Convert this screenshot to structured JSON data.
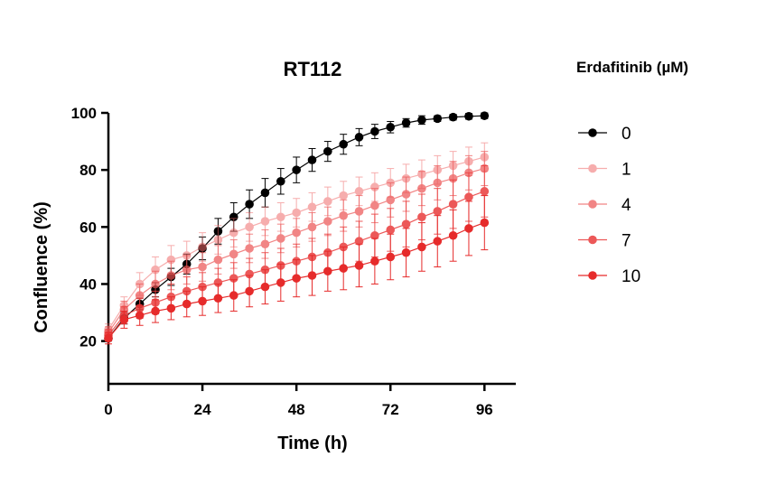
{
  "chart_data": {
    "type": "line",
    "title": "RT112",
    "xlabel": "Time (h)",
    "ylabel": "Confluence (%)",
    "xlim": [
      0,
      104
    ],
    "ylim": [
      5,
      100
    ],
    "xticks": [
      0,
      24,
      48,
      72,
      96
    ],
    "yticks": [
      20,
      40,
      60,
      80,
      100
    ],
    "grid": false,
    "legend": {
      "title": "Erdafitinib (µM)",
      "placement": "right"
    },
    "x": [
      0,
      4,
      8,
      12,
      16,
      20,
      24,
      28,
      32,
      36,
      40,
      44,
      48,
      52,
      56,
      60,
      64,
      68,
      72,
      76,
      80,
      84,
      88,
      92,
      96
    ],
    "series": [
      {
        "name": "0",
        "color": "#000000",
        "opacity": 1.0,
        "values": [
          21,
          28,
          33,
          38,
          42.5,
          47,
          52.5,
          58.5,
          63.5,
          68,
          72,
          76,
          80,
          83.5,
          86.5,
          89,
          91.5,
          93.5,
          95,
          96.5,
          97.5,
          98,
          98.5,
          98.8,
          99
        ],
        "errors": [
          1,
          2,
          2,
          2.5,
          3,
          3.5,
          4,
          4.5,
          5,
          5,
          5,
          4.5,
          4.5,
          4,
          3.5,
          3.5,
          3,
          2.5,
          2,
          1.5,
          1.5,
          1,
          1,
          1,
          1
        ]
      },
      {
        "name": "1",
        "color": "#f06b6b",
        "opacity": 0.55,
        "values": [
          24,
          32.5,
          40,
          45,
          48.5,
          50,
          53,
          55.5,
          58,
          60,
          62,
          63.5,
          65,
          67,
          69,
          71,
          72.5,
          74,
          75.5,
          77,
          78.5,
          80,
          81.5,
          83,
          84.5
        ],
        "errors": [
          2,
          3,
          4,
          4.5,
          5,
          5,
          5,
          5,
          5,
          5,
          5,
          5,
          5,
          5,
          5,
          5,
          5,
          5,
          5,
          5,
          5,
          5,
          5,
          5,
          5
        ]
      },
      {
        "name": "4",
        "color": "#ec5252",
        "opacity": 0.7,
        "values": [
          23,
          31,
          36,
          40,
          43,
          45,
          46,
          48.5,
          50.5,
          52.5,
          54,
          56,
          58,
          60,
          62,
          64,
          65.5,
          67.5,
          69.5,
          71.5,
          73.5,
          75.5,
          77,
          79,
          80.5
        ],
        "errors": [
          2,
          3,
          4,
          4.5,
          5,
          5,
          5,
          5,
          5,
          5,
          5,
          5,
          5,
          5,
          5,
          5.5,
          5.5,
          6,
          6,
          6,
          6,
          6,
          6,
          6,
          6
        ]
      },
      {
        "name": "7",
        "color": "#e93c3c",
        "opacity": 0.85,
        "values": [
          22,
          29,
          31.5,
          33.5,
          35.5,
          37.5,
          39,
          40.5,
          42,
          43.5,
          45,
          46.5,
          48,
          49.5,
          51,
          53,
          55,
          57,
          59,
          61,
          63.5,
          65.5,
          68,
          70.5,
          72.5
        ],
        "errors": [
          2,
          3,
          3.5,
          4,
          4.5,
          5,
          5,
          5,
          5.5,
          5.5,
          6,
          6,
          6,
          6.5,
          6.5,
          7,
          7,
          7.5,
          7.5,
          8,
          8,
          8,
          8.5,
          8.5,
          9
        ]
      },
      {
        "name": "10",
        "color": "#e62b2b",
        "opacity": 1.0,
        "values": [
          21,
          27.5,
          29,
          30.5,
          31.5,
          33,
          34,
          35,
          36,
          37.5,
          39,
          40.5,
          42,
          43,
          44.5,
          45.5,
          46.5,
          48,
          49.5,
          51,
          53,
          55,
          57,
          59.5,
          61.5
        ],
        "errors": [
          2,
          3,
          3.5,
          4,
          4,
          4.5,
          5,
          5,
          5.5,
          5.5,
          6,
          6.5,
          6.5,
          7,
          7,
          7.5,
          7.5,
          8,
          8,
          8.5,
          8.5,
          9,
          9,
          9.5,
          9.5
        ]
      }
    ]
  }
}
